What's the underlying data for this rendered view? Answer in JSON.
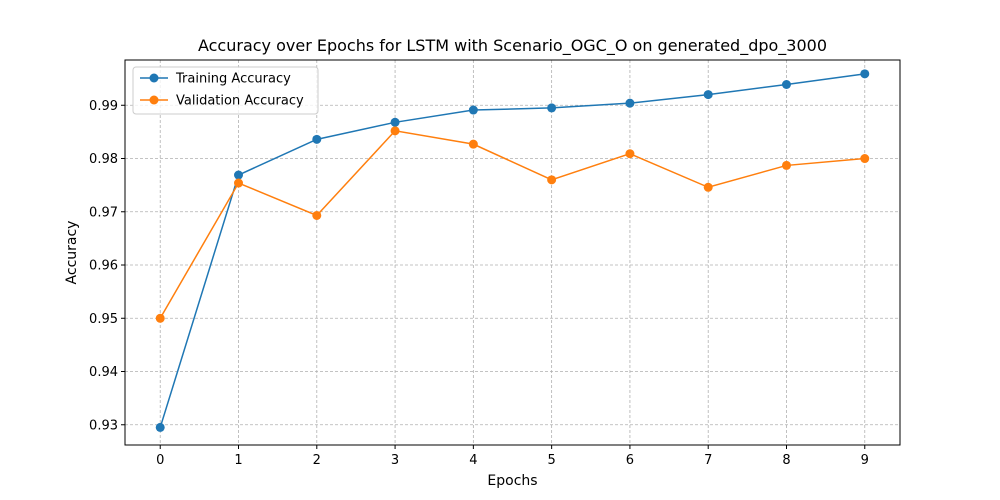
{
  "chart_data": {
    "type": "line",
    "title": "Accuracy over Epochs for LSTM with Scenario_OGC_O on generated_dpo_3000",
    "xlabel": "Epochs",
    "ylabel": "Accuracy",
    "x": [
      0,
      1,
      2,
      3,
      4,
      5,
      6,
      7,
      8,
      9
    ],
    "xticks": [
      "0",
      "1",
      "2",
      "3",
      "4",
      "5",
      "6",
      "7",
      "8",
      "9"
    ],
    "yticks": [
      "0.93",
      "0.94",
      "0.95",
      "0.96",
      "0.97",
      "0.98",
      "0.99"
    ],
    "ytick_values": [
      0.93,
      0.94,
      0.95,
      0.96,
      0.97,
      0.98,
      0.99
    ],
    "xlim": [
      -0.45,
      9.45
    ],
    "ylim": [
      0.9262,
      0.9985
    ],
    "grid": true,
    "legend_position": "upper-left",
    "series": [
      {
        "name": "Training Accuracy",
        "color": "#1f77b4",
        "values": [
          0.9295,
          0.9769,
          0.9836,
          0.9868,
          0.9891,
          0.9895,
          0.9904,
          0.992,
          0.9939,
          0.9959
        ]
      },
      {
        "name": "Validation Accuracy",
        "color": "#ff7f0e",
        "values": [
          0.95,
          0.9754,
          0.9693,
          0.9852,
          0.9827,
          0.976,
          0.9809,
          0.9746,
          0.9787,
          0.98
        ]
      }
    ]
  }
}
